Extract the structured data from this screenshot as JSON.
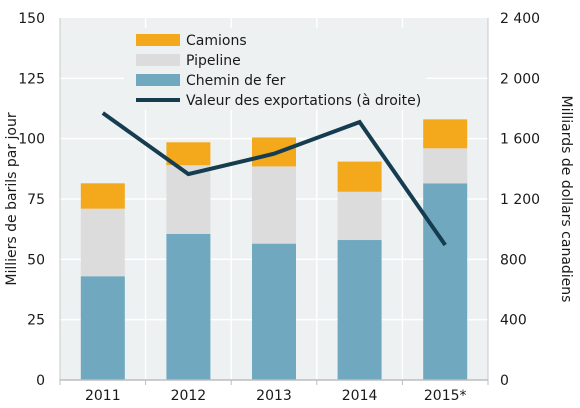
{
  "chart_data": {
    "type": "bar",
    "stacked": true,
    "categories": [
      "2011",
      "2012",
      "2013",
      "2014",
      "2015*"
    ],
    "series": [
      {
        "name": "Chemin de fer",
        "values": [
          43,
          60.5,
          56.5,
          58,
          81.5
        ],
        "color": "#6fa8bf"
      },
      {
        "name": "Pipeline",
        "values": [
          28,
          28.5,
          32,
          20,
          14.5
        ],
        "color": "#dcdcdc"
      },
      {
        "name": "Camions",
        "values": [
          10.5,
          9.5,
          12,
          12.5,
          12
        ],
        "color": "#f4a81c"
      }
    ],
    "line_series": {
      "name": "Valeur des exportations (à droite)",
      "values": [
        1770,
        1365,
        1500,
        1710,
        895
      ],
      "color": "#153d4f",
      "axis": "right"
    },
    "ylabel": "Milliers de barils par jour",
    "y2label": "Milliards de dollars canadiens",
    "ylim": [
      0,
      150
    ],
    "y2lim": [
      0,
      2400
    ],
    "yticks": [
      "0",
      "25",
      "50",
      "75",
      "100",
      "125",
      "150"
    ],
    "y2ticks": [
      "0",
      "400",
      "800",
      "1 200",
      "1 600",
      "2 000",
      "2 400"
    ],
    "legend_order": [
      "Camions",
      "Pipeline",
      "Chemin de fer",
      "Valeur des exportations (à droite)"
    ],
    "legend_position": "top-center",
    "plot_background": "#edf1f2",
    "grid": true
  }
}
